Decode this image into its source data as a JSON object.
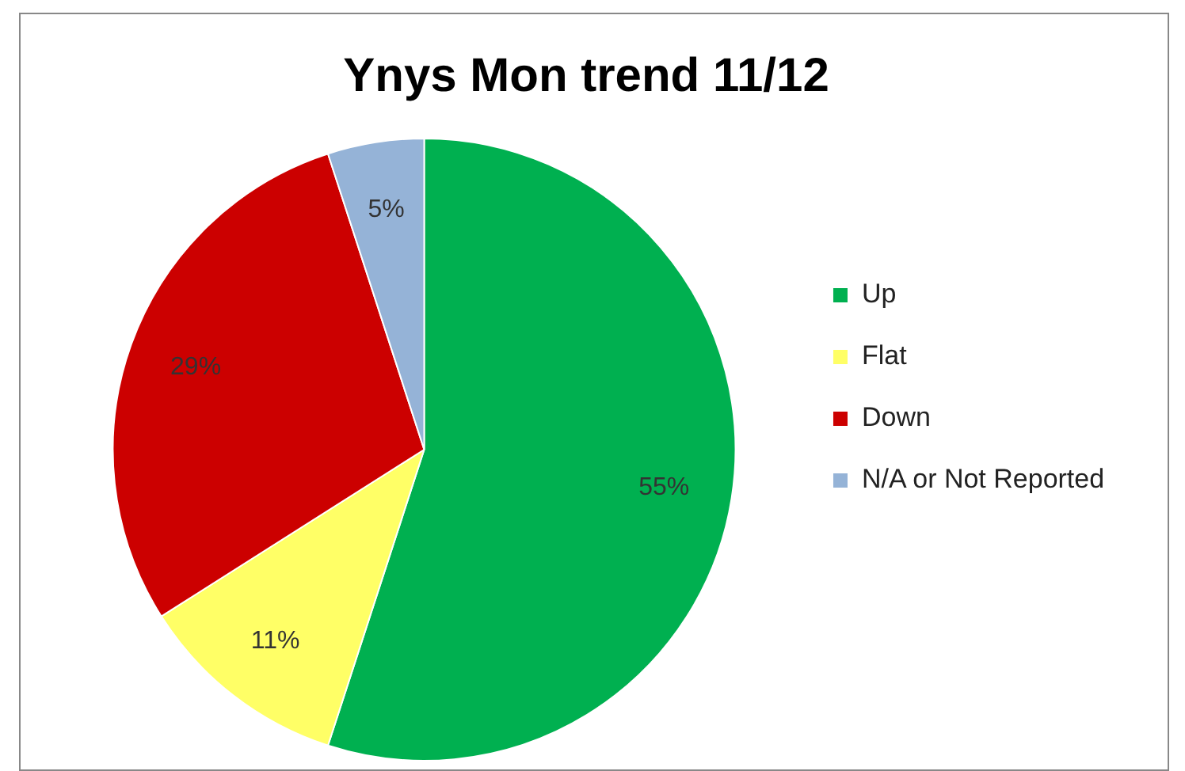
{
  "chart_data": {
    "type": "pie",
    "title": "Ynys Mon trend 11/12",
    "categories": [
      "Up",
      "Flat",
      "Down",
      "N/A or Not Reported"
    ],
    "values": [
      55,
      11,
      29,
      5
    ],
    "colors": [
      "#00b050",
      "#ffff66",
      "#cc0000",
      "#95b3d7"
    ],
    "value_labels": [
      "55%",
      "11%",
      "29%",
      "5%"
    ],
    "legend": "right"
  }
}
